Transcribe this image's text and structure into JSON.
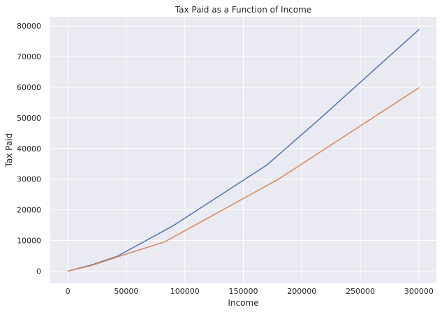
{
  "chart_data": {
    "type": "line",
    "title": "Tax Paid as a Function of Income",
    "xlabel": "Income",
    "ylabel": "Tax Paid",
    "xlim": [
      -15000,
      315000
    ],
    "ylim": [
      -4000,
      83000
    ],
    "xticks": [
      0,
      50000,
      100000,
      150000,
      200000,
      250000,
      300000
    ],
    "yticks": [
      0,
      10000,
      20000,
      30000,
      40000,
      50000,
      60000,
      70000,
      80000
    ],
    "xtick_labels": [
      "0",
      "50000",
      "100000",
      "150000",
      "200000",
      "250000",
      "300000"
    ],
    "ytick_labels": [
      "0",
      "10000",
      "20000",
      "30000",
      "40000",
      "50000",
      "60000",
      "70000",
      "80000"
    ],
    "grid": true,
    "series": [
      {
        "color": "#4c72b0",
        "points": [
          [
            0,
            0
          ],
          [
            20000,
            2000
          ],
          [
            42000,
            4800
          ],
          [
            90000,
            14800
          ],
          [
            170000,
            34600
          ],
          [
            215000,
            49600
          ],
          [
            300000,
            78800
          ]
        ]
      },
      {
        "color": "#dd8452",
        "points": [
          [
            0,
            0
          ],
          [
            20000,
            1800
          ],
          [
            42000,
            4600
          ],
          [
            83000,
            9600
          ],
          [
            180000,
            30000
          ],
          [
            300000,
            59800
          ]
        ]
      }
    ]
  },
  "colors": {
    "plot_background": "#eaeaf2",
    "grid": "#ffffff",
    "text": "#262626"
  }
}
